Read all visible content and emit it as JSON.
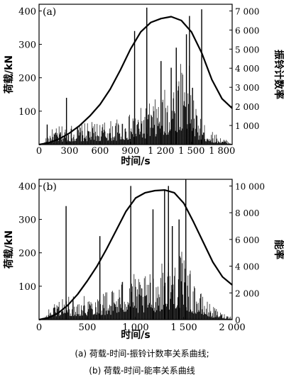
{
  "captions": {
    "a": "(a)  荷载-时间-振铃计数率关系曲线;",
    "b": "(b)  荷载-时间-能率关系曲线"
  },
  "chart_data": [
    {
      "panel_label": "(a)",
      "type": "bar",
      "xlabel": "时间/s",
      "ylabel": "荷载/kN",
      "y2label": "振铃计数率",
      "xlim": [
        0,
        1900
      ],
      "ylim": [
        0,
        420
      ],
      "y2lim": [
        0,
        7350
      ],
      "xticks": [
        0,
        300,
        600,
        900,
        1200,
        1500,
        1800
      ],
      "xtick_labels": [
        "0",
        "300",
        "600",
        "900",
        "1 200",
        "1 500",
        "1 800"
      ],
      "yticks": [
        100,
        200,
        300,
        400
      ],
      "ytick_labels": [
        "100",
        "200",
        "300",
        "400"
      ],
      "y2ticks": [
        1000,
        2000,
        3000,
        4000,
        5000,
        6000,
        7000
      ],
      "y2tick_labels": [
        "1 000",
        "2 000",
        "3 000",
        "4 000",
        "5 000",
        "6 000",
        "7 000"
      ],
      "series": [
        {
          "role": "load_curve",
          "axis": "y2",
          "style": "line",
          "x": [
            0,
            100,
            200,
            300,
            400,
            500,
            600,
            700,
            800,
            900,
            1000,
            1100,
            1200,
            1300,
            1400,
            1500,
            1600,
            1700,
            1800,
            1900
          ],
          "y": [
            0,
            100,
            300,
            600,
            1000,
            1500,
            2100,
            2900,
            3900,
            5000,
            5900,
            6400,
            6600,
            6700,
            6500,
            5900,
            4800,
            3400,
            2400,
            1900
          ]
        },
        {
          "role": "ae_bars",
          "axis": "y",
          "envelope_x": [
            0,
            50,
            80,
            120,
            200,
            300,
            450,
            600,
            750,
            850,
            950,
            1050,
            1150,
            1250,
            1300,
            1350,
            1400,
            1440,
            1480,
            1520,
            1560,
            1600,
            1700,
            1800,
            1900
          ],
          "envelope_y": [
            0,
            2,
            30,
            45,
            55,
            60,
            65,
            70,
            75,
            85,
            100,
            120,
            140,
            170,
            200,
            240,
            280,
            310,
            230,
            150,
            100,
            70,
            40,
            20,
            8
          ],
          "spikes_x": [
            80,
            270,
            940,
            1060,
            1200,
            1300,
            1350,
            1450,
            1480,
            1510,
            1600
          ],
          "spikes_y": [
            60,
            140,
            340,
            410,
            250,
            230,
            290,
            330,
            385,
            170,
            405
          ]
        }
      ]
    },
    {
      "panel_label": "(b)",
      "type": "bar",
      "xlabel": "时间/s",
      "ylabel": "荷载/kN",
      "y2label": "能率",
      "xlim": [
        0,
        2000
      ],
      "ylim": [
        0,
        420
      ],
      "y2lim": [
        0,
        10500
      ],
      "xticks": [
        0,
        500,
        1000,
        1500,
        2000
      ],
      "xtick_labels": [
        "0",
        "500",
        "1 000",
        "1 500",
        "2 000"
      ],
      "yticks": [
        100,
        200,
        300,
        400
      ],
      "ytick_labels": [
        "100",
        "200",
        "300",
        "400"
      ],
      "y2ticks": [
        0,
        2000,
        4000,
        6000,
        8000,
        10000
      ],
      "y2tick_labels": [
        "0",
        "2 000",
        "4 000",
        "6 000",
        "8 000",
        "10 000"
      ],
      "series": [
        {
          "role": "load_curve",
          "axis": "y2",
          "style": "line",
          "x": [
            0,
            100,
            200,
            300,
            400,
            500,
            600,
            700,
            800,
            900,
            1000,
            1100,
            1200,
            1300,
            1400,
            1500,
            1600,
            1700,
            1800,
            1900,
            2000
          ],
          "y": [
            0,
            150,
            500,
            1100,
            1900,
            2900,
            4000,
            5300,
            6700,
            8100,
            9100,
            9500,
            9650,
            9700,
            9500,
            8700,
            7300,
            5800,
            4300,
            3200,
            2600
          ]
        },
        {
          "role": "ae_bars",
          "axis": "y",
          "envelope_x": [
            0,
            60,
            120,
            200,
            300,
            400,
            500,
            600,
            700,
            800,
            900,
            950,
            1000,
            1100,
            1200,
            1300,
            1400,
            1500,
            1600,
            1700,
            1800,
            1900,
            2000
          ],
          "envelope_y": [
            0,
            10,
            40,
            70,
            70,
            70,
            80,
            90,
            90,
            100,
            140,
            200,
            120,
            130,
            150,
            180,
            220,
            200,
            120,
            70,
            40,
            20,
            10
          ],
          "spikes_x": [
            280,
            630,
            950,
            1180,
            1300,
            1340,
            1380,
            1450,
            1520
          ],
          "spikes_y": [
            340,
            250,
            400,
            330,
            390,
            400,
            280,
            300,
            420
          ]
        }
      ]
    }
  ]
}
